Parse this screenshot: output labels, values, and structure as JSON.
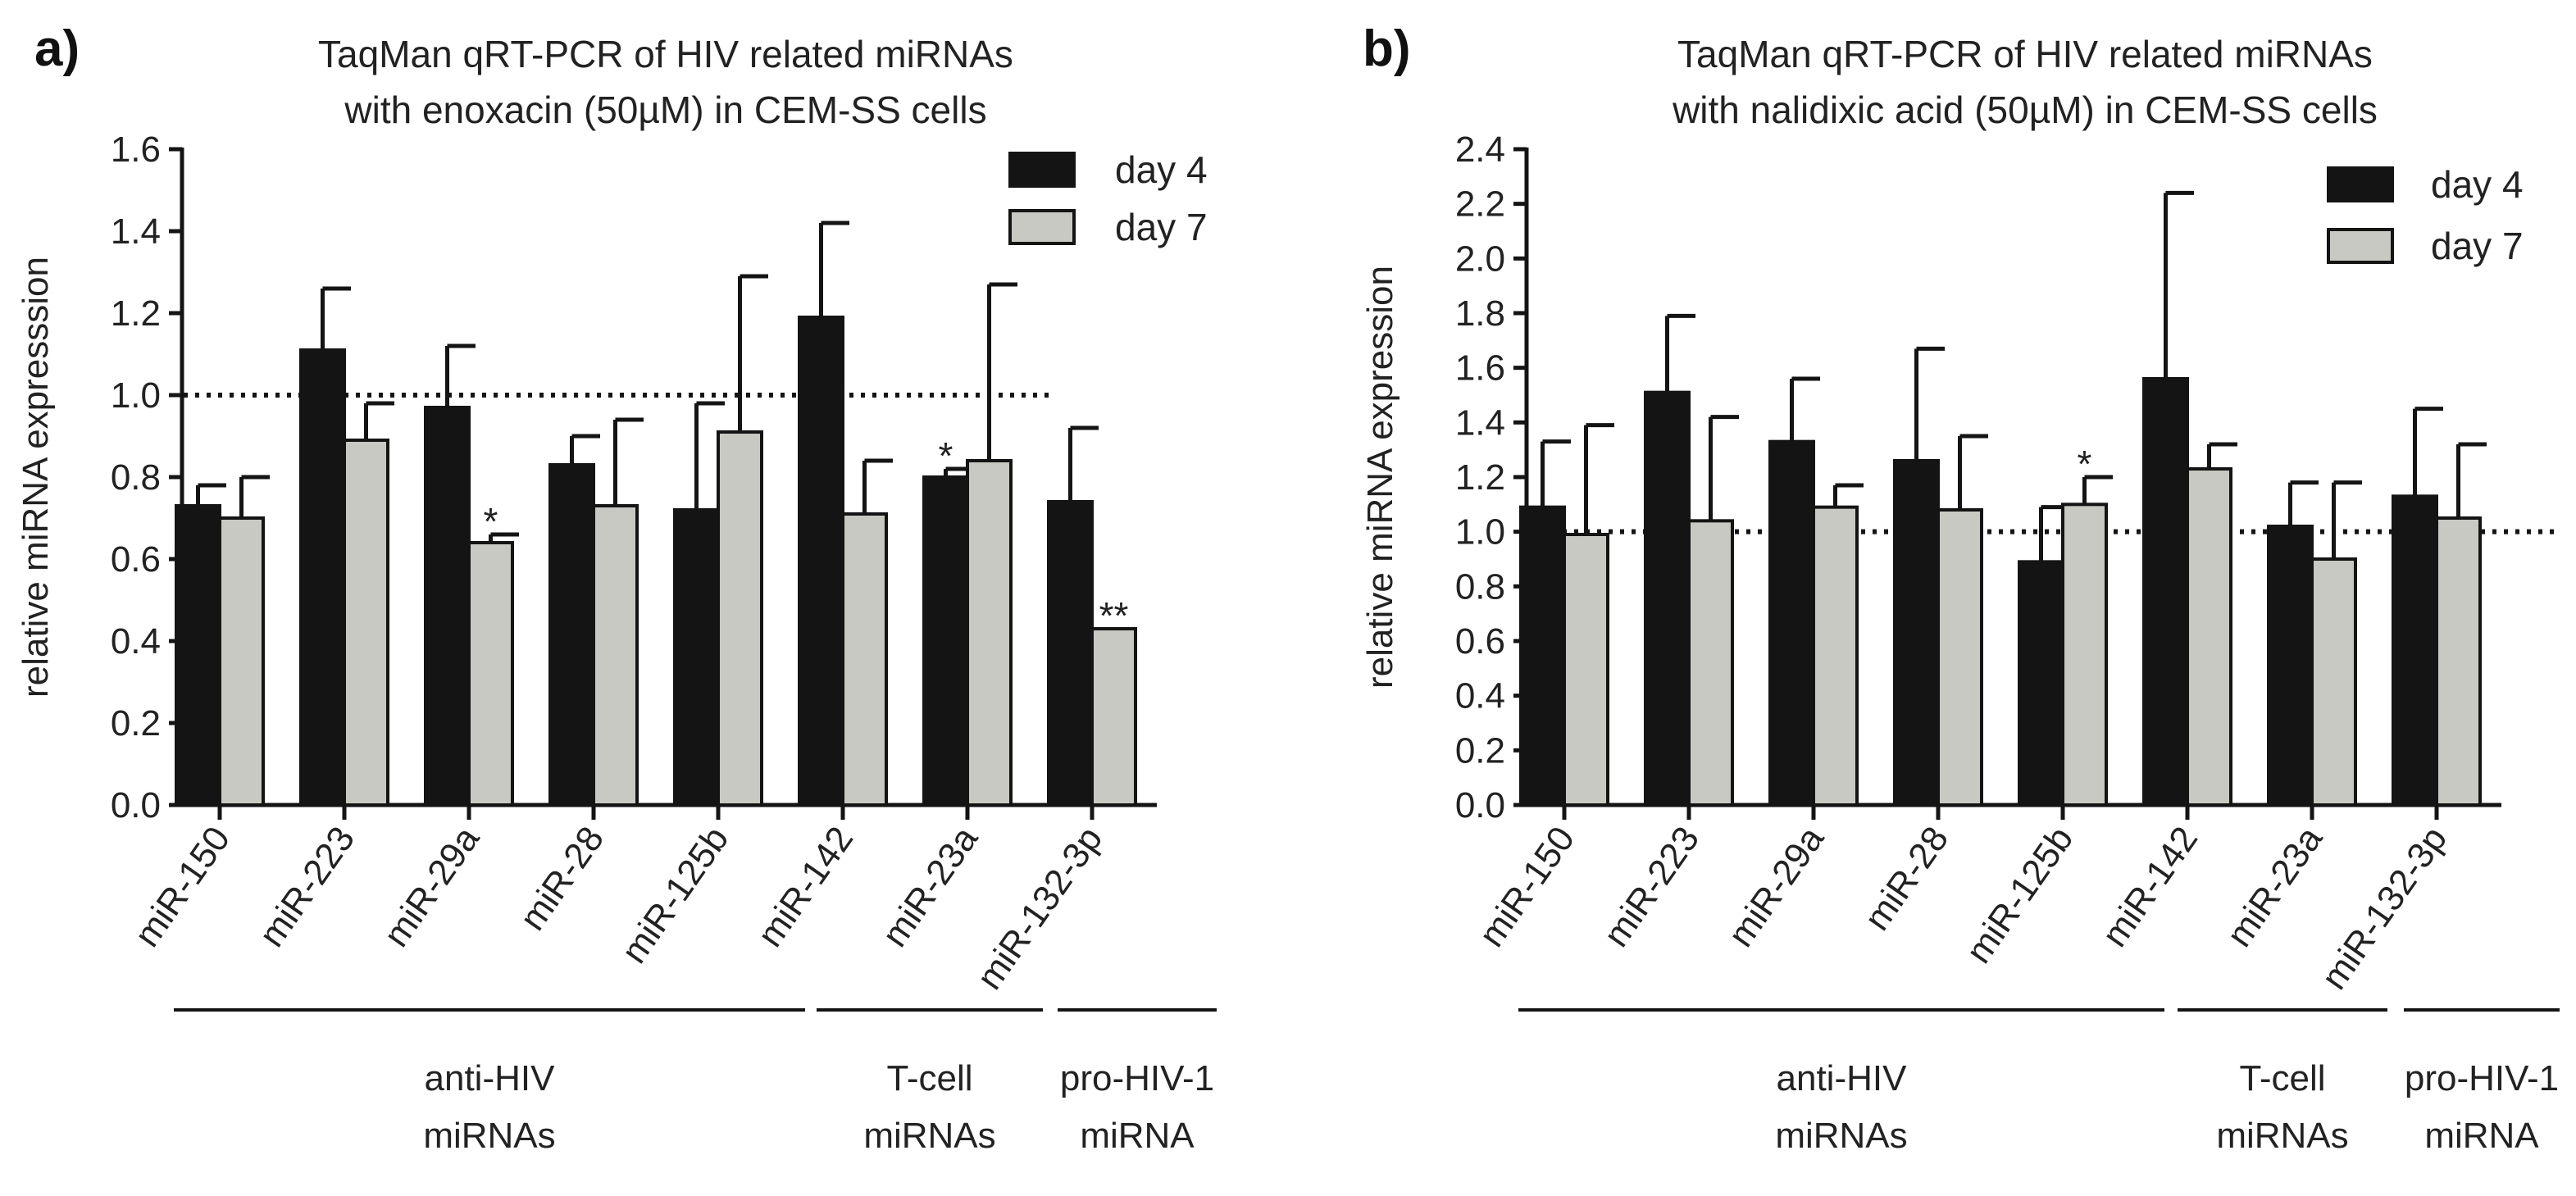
{
  "colors": {
    "day4": "#141414",
    "day7": "#c9c9c4",
    "stroke": "#141414",
    "refline": "#141414"
  },
  "chart_data": [
    {
      "type": "bar",
      "panel_label": "a)",
      "title_lines": [
        "TaqMan qRT-PCR of HIV related miRNAs",
        "with enoxacin (50µM) in CEM-SS cells"
      ],
      "ylabel": "relative miRNA expresssion",
      "ylim": [
        0,
        1.6
      ],
      "yticks": [
        0,
        0.2,
        0.4,
        0.6,
        0.8,
        1.0,
        1.2,
        1.4,
        1.6
      ],
      "ytick_labels": [
        "0.0",
        "0.2",
        "0.4",
        "0.6",
        "0.8",
        "1.0",
        "1.2",
        "1.4",
        "1.6"
      ],
      "reference_line": 1.0,
      "categories": [
        "miR-150",
        "miR-223",
        "miR-29a",
        "miR-28",
        "miR-125b",
        "miR-142",
        "miR-23a",
        "miR-132-3p"
      ],
      "series": [
        {
          "name": "day 4",
          "values": [
            0.73,
            1.11,
            0.97,
            0.83,
            0.72,
            1.19,
            0.8,
            0.74
          ],
          "errors": [
            0.05,
            0.15,
            0.15,
            0.07,
            0.26,
            0.23,
            0.02,
            0.18
          ]
        },
        {
          "name": "day 7",
          "values": [
            0.7,
            0.89,
            0.64,
            0.73,
            0.91,
            0.71,
            0.84,
            0.43
          ],
          "errors": [
            0.1,
            0.09,
            0.02,
            0.21,
            0.38,
            0.13,
            0.43,
            0.0
          ]
        }
      ],
      "annotations": [
        {
          "series": 1,
          "category": 2,
          "text": "*"
        },
        {
          "series": 0,
          "category": 6,
          "text": "*"
        },
        {
          "series": 1,
          "category": 7,
          "text": "**"
        }
      ],
      "groups": [
        {
          "lines": [
            "anti-HIV",
            "miRNAs"
          ],
          "start": 0,
          "end": 4
        },
        {
          "lines": [
            "T-cell",
            "miRNAs"
          ],
          "start": 5,
          "end": 6
        },
        {
          "lines": [
            "pro-HIV-1",
            "miRNA"
          ],
          "start": 7,
          "end": 7
        }
      ],
      "legend": {
        "position": "top-right",
        "entries": [
          "day 4",
          "day 7"
        ]
      }
    },
    {
      "type": "bar",
      "panel_label": "b)",
      "title_lines": [
        "TaqMan qRT-PCR of HIV related miRNAs",
        "with nalidixic acid (50µM) in CEM-SS cells"
      ],
      "ylabel": "relative miRNA expression",
      "ylim": [
        0,
        2.4
      ],
      "yticks": [
        0,
        0.2,
        0.4,
        0.6,
        0.8,
        1.0,
        1.2,
        1.4,
        1.6,
        1.8,
        2.0,
        2.2,
        2.4
      ],
      "ytick_labels": [
        "0.0",
        "0.2",
        "0.4",
        "0.6",
        "0.8",
        "1.0",
        "1.2",
        "1.4",
        "1.6",
        "1.8",
        "2.0",
        "2.2",
        "2.4"
      ],
      "reference_line": 1.0,
      "categories": [
        "miR-150",
        "miR-223",
        "miR-29a",
        "miR-28",
        "miR-125b",
        "miR-142",
        "miR-23a",
        "miR-132-3p"
      ],
      "series": [
        {
          "name": "day 4",
          "values": [
            1.09,
            1.51,
            1.33,
            1.26,
            0.89,
            1.56,
            1.02,
            1.13
          ],
          "errors": [
            0.24,
            0.28,
            0.23,
            0.41,
            0.2,
            0.68,
            0.16,
            0.32
          ]
        },
        {
          "name": "day 7",
          "values": [
            0.99,
            1.04,
            1.09,
            1.08,
            1.1,
            1.23,
            0.9,
            1.05
          ],
          "errors": [
            0.4,
            0.38,
            0.08,
            0.27,
            0.1,
            0.09,
            0.28,
            0.27
          ]
        }
      ],
      "annotations": [
        {
          "series": 1,
          "category": 4,
          "text": "*"
        }
      ],
      "groups": [
        {
          "lines": [
            "anti-HIV",
            "miRNAs"
          ],
          "start": 0,
          "end": 4
        },
        {
          "lines": [
            "T-cell",
            "miRNAs"
          ],
          "start": 5,
          "end": 6
        },
        {
          "lines": [
            "pro-HIV-1",
            "miRNA"
          ],
          "start": 7,
          "end": 7
        }
      ],
      "legend": {
        "position": "top-right",
        "entries": [
          "day 4",
          "day 7"
        ]
      }
    }
  ]
}
